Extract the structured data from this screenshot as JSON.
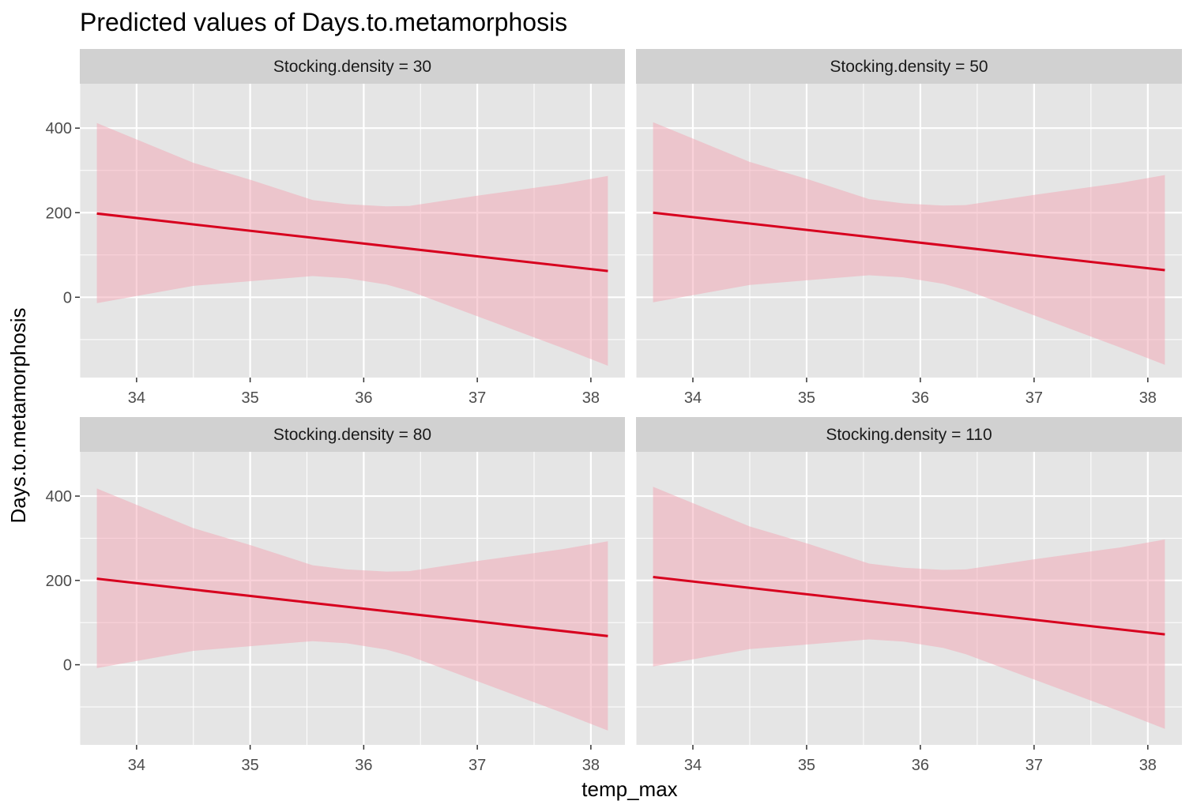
{
  "chart_data": {
    "type": "line",
    "title": "Predicted values of Days.to.metamorphosis",
    "xlabel": "temp_max",
    "ylabel": "Days.to.metamorphosis",
    "xlim": [
      33.5,
      38.3
    ],
    "ylim": [
      -190,
      505
    ],
    "x_ticks": [
      34,
      35,
      36,
      37,
      38
    ],
    "x_tick_labels": [
      "34",
      "35",
      "36",
      "37",
      "38"
    ],
    "y_ticks": [
      0,
      200,
      400
    ],
    "y_tick_labels": [
      "0",
      "200",
      "400"
    ],
    "grid": true,
    "legend": "none",
    "facet_layout": "2x2",
    "colors": {
      "line": "#d7001e",
      "ribbon": "#f4a6b3",
      "panel_bg": "#e5e5e5",
      "strip_bg": "#d1d1d1",
      "grid": "#ffffff"
    },
    "panels": [
      {
        "strip_label": "Stocking.density = 30",
        "line": {
          "x": [
            33.65,
            38.15
          ],
          "y": [
            198,
            62
          ]
        },
        "ribbon": {
          "x": [
            33.65,
            34.5,
            35.0,
            35.55,
            35.85,
            36.2,
            36.4,
            37.0,
            37.75,
            38.15
          ],
          "lower": [
            -14,
            27,
            38,
            50,
            45,
            30,
            15,
            -45,
            -120,
            -162
          ],
          "upper": [
            412,
            318,
            278,
            230,
            220,
            215,
            216,
            240,
            268,
            287
          ]
        }
      },
      {
        "strip_label": "Stocking.density = 50",
        "line": {
          "x": [
            33.65,
            38.15
          ],
          "y": [
            200,
            64
          ]
        },
        "ribbon": {
          "x": [
            33.65,
            34.5,
            35.0,
            35.55,
            35.85,
            36.2,
            36.4,
            37.0,
            37.75,
            38.15
          ],
          "lower": [
            -12,
            29,
            40,
            52,
            47,
            32,
            17,
            -43,
            -118,
            -160
          ],
          "upper": [
            414,
            320,
            280,
            232,
            222,
            217,
            218,
            242,
            270,
            289
          ]
        }
      },
      {
        "strip_label": "Stocking.density = 80",
        "line": {
          "x": [
            33.65,
            38.15
          ],
          "y": [
            204,
            68
          ]
        },
        "ribbon": {
          "x": [
            33.65,
            34.5,
            35.0,
            35.55,
            35.85,
            36.2,
            36.4,
            37.0,
            37.75,
            38.15
          ],
          "lower": [
            -8,
            33,
            44,
            56,
            51,
            36,
            21,
            -39,
            -114,
            -156
          ],
          "upper": [
            418,
            324,
            284,
            236,
            226,
            221,
            222,
            246,
            274,
            293
          ]
        }
      },
      {
        "strip_label": "Stocking.density = 110",
        "line": {
          "x": [
            33.65,
            38.15
          ],
          "y": [
            208,
            72
          ]
        },
        "ribbon": {
          "x": [
            33.65,
            34.5,
            35.0,
            35.55,
            35.85,
            36.2,
            36.4,
            37.0,
            37.75,
            38.15
          ],
          "lower": [
            -4,
            37,
            48,
            60,
            55,
            40,
            25,
            -35,
            -110,
            -152
          ],
          "upper": [
            422,
            328,
            288,
            240,
            230,
            225,
            226,
            250,
            278,
            297
          ]
        }
      }
    ]
  }
}
